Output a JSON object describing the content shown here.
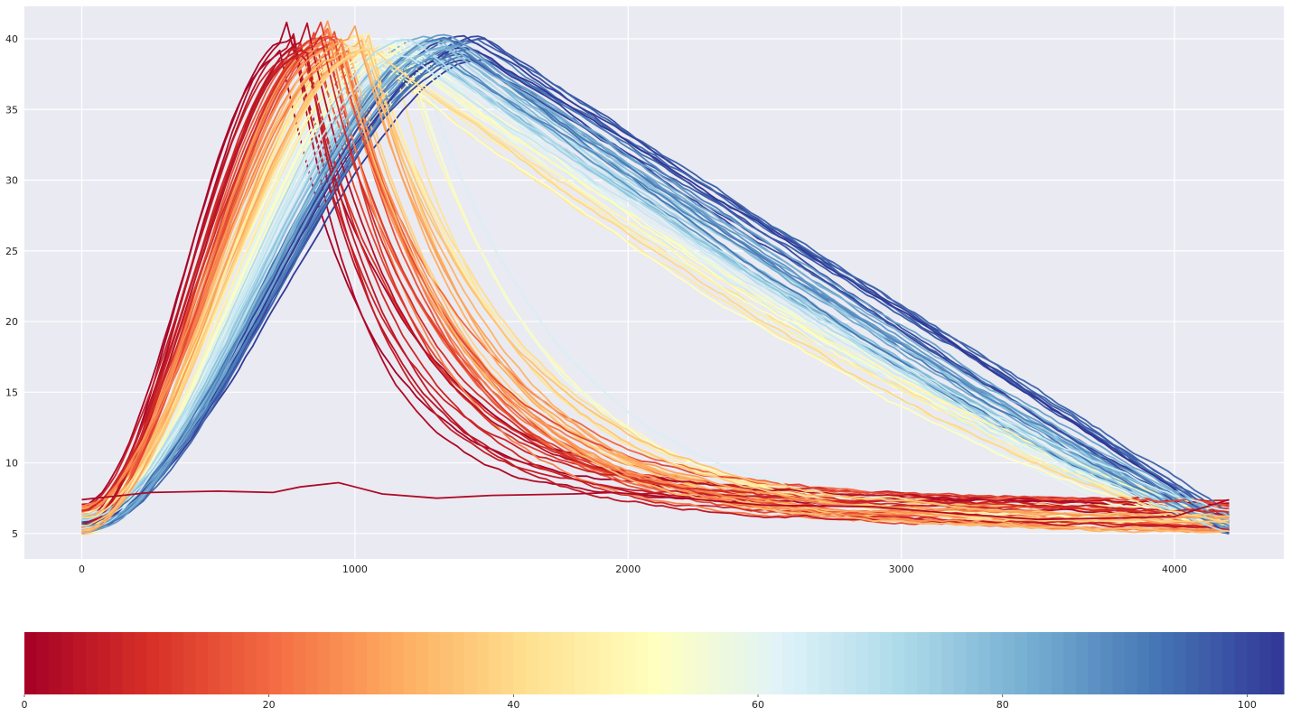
{
  "chart_data": [
    {
      "type": "line",
      "description_style": "seaborn-darkgrid",
      "colormap": "RdYlBu",
      "grid": true,
      "legend": "none",
      "xlim": [
        -210,
        4400
      ],
      "ylim": [
        3.2,
        42.3
      ],
      "x_ticks": [
        0,
        1000,
        2000,
        3000,
        4000
      ],
      "y_ticks": [
        5,
        10,
        15,
        20,
        25,
        30,
        35,
        40
      ],
      "x_tick_labels": [
        "0",
        "1000",
        "2000",
        "3000",
        "4000"
      ],
      "y_tick_labels": [
        "5",
        "10",
        "15",
        "20",
        "25",
        "30",
        "35",
        "40"
      ],
      "series_generator": {
        "count": 100,
        "x_range": [
          0,
          4200
        ],
        "peak_value_range": [
          38.5,
          40.3
        ],
        "peak_x_range": [
          760,
          1470
        ],
        "start_value_range": [
          5.0,
          7.3
        ],
        "end_value_range": [
          5.0,
          7.4
        ],
        "note": "peak position shifts right as color index goes from 0 (red) to 100 (blue)"
      },
      "flat_series": {
        "color_index": 2,
        "points": [
          [
            0,
            7.4
          ],
          [
            250,
            7.9
          ],
          [
            500,
            8.0
          ],
          [
            700,
            7.9
          ],
          [
            800,
            8.3
          ],
          [
            940,
            8.6
          ],
          [
            1100,
            7.8
          ],
          [
            1300,
            7.5
          ],
          [
            1500,
            7.7
          ],
          [
            1800,
            7.8
          ],
          [
            1950,
            7.9
          ],
          [
            2200,
            7.5
          ],
          [
            2500,
            7.0
          ],
          [
            2900,
            6.9
          ],
          [
            3200,
            6.4
          ],
          [
            3500,
            6.0
          ],
          [
            3800,
            6.1
          ],
          [
            4000,
            6.2
          ],
          [
            4200,
            7.4
          ]
        ]
      }
    },
    {
      "type": "heatmap",
      "role": "colorbar",
      "colormap": "RdYlBu",
      "range": [
        0,
        103
      ],
      "ticks": [
        0,
        20,
        40,
        60,
        80,
        100
      ],
      "tick_labels": [
        "0",
        "20",
        "40",
        "60",
        "80",
        "100"
      ],
      "stops": [
        "#a50026",
        "#d73027",
        "#f46d43",
        "#fdae61",
        "#fee090",
        "#ffffbf",
        "#e0f3f8",
        "#abd9e9",
        "#74add1",
        "#4575b4",
        "#313695"
      ]
    }
  ]
}
